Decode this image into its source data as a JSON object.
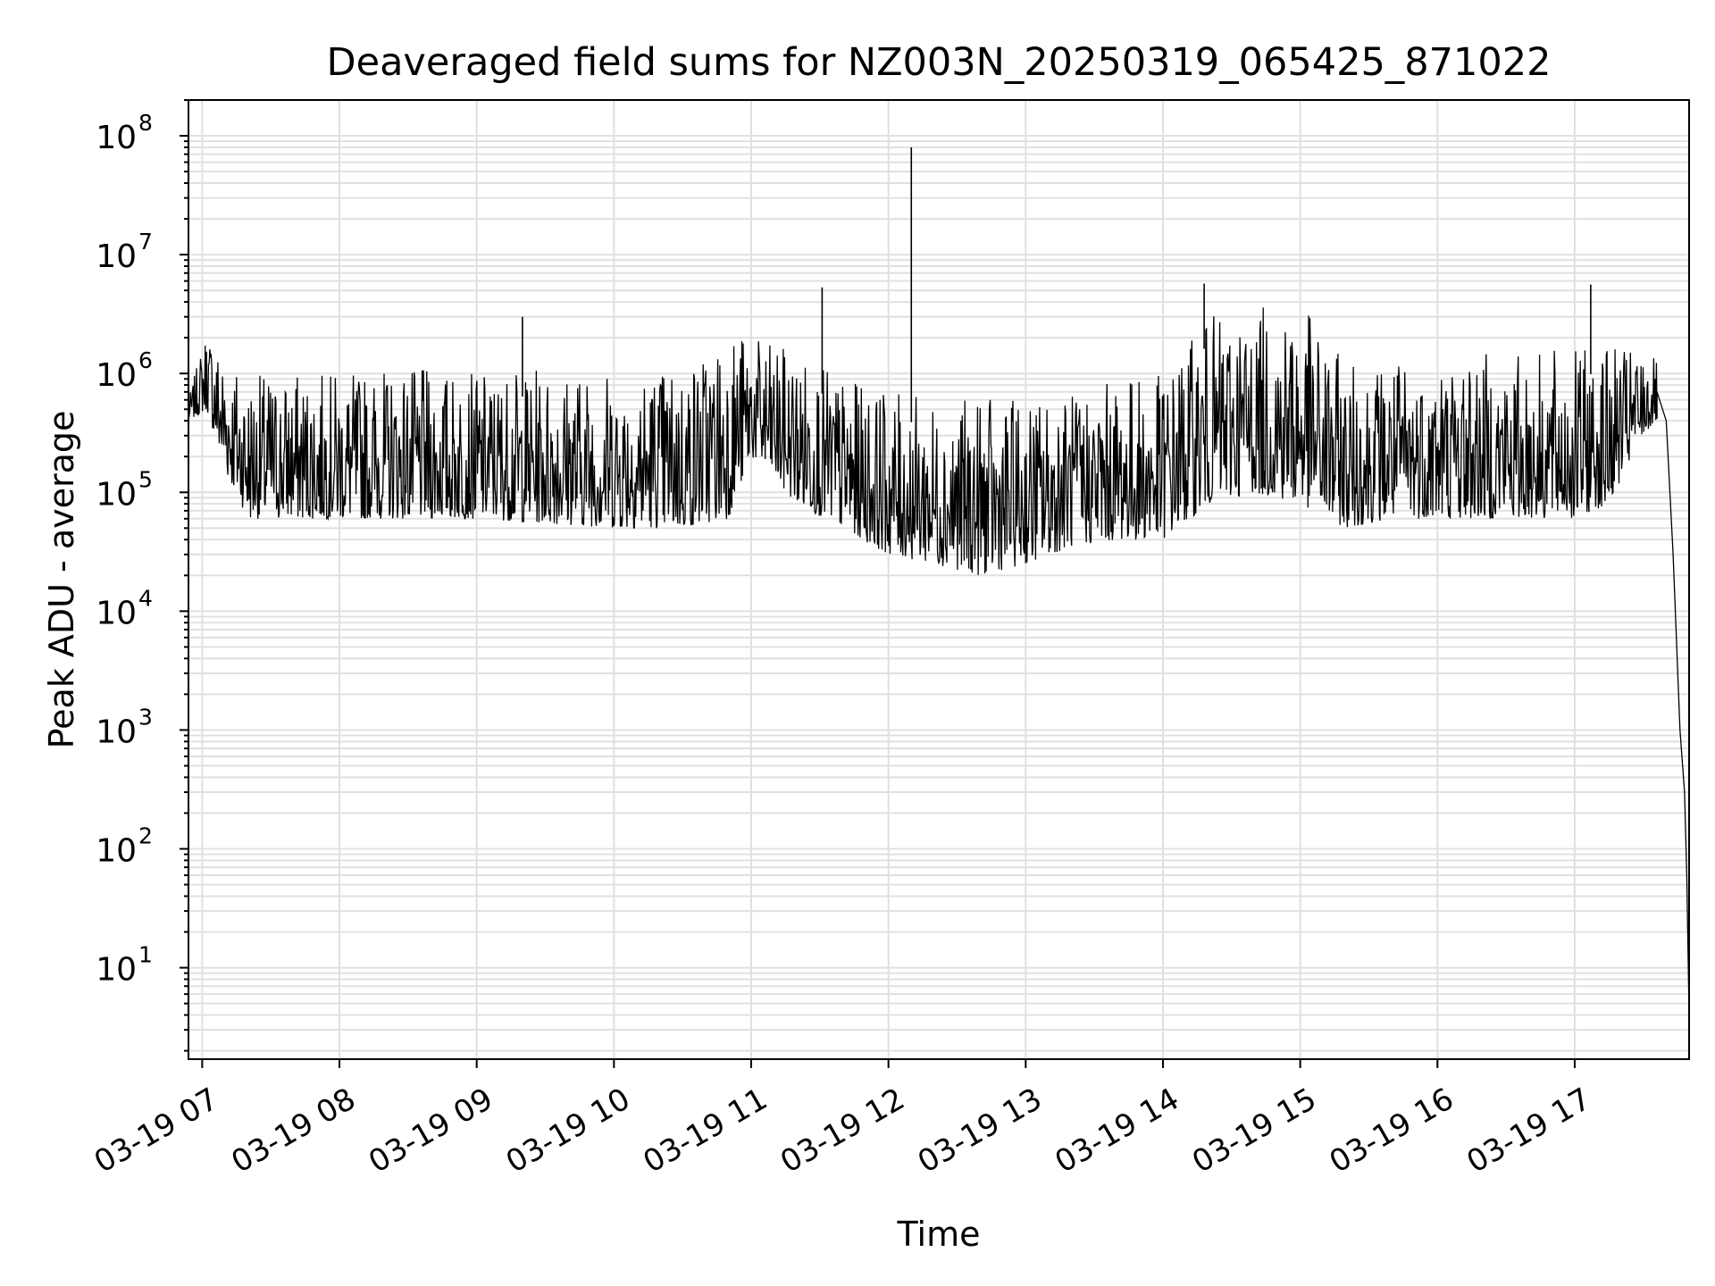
{
  "chart_data": {
    "type": "line",
    "title": "Deaveraged field sums for NZ003N_20250319_065425_871022",
    "xlabel": "Time",
    "ylabel": "Peak ADU - average",
    "y_scale": "log",
    "ylim": [
      1.7,
      200000000
    ],
    "xlim": [
      "2025-03-19 06:54",
      "2025-03-19 17:50"
    ],
    "grid": true,
    "grid_minor": true,
    "line_color": "#000000",
    "grid_color": "#e0e0e0",
    "x_tick_labels": [
      "03-19 07",
      "03-19 08",
      "03-19 09",
      "03-19 10",
      "03-19 11",
      "03-19 12",
      "03-19 13",
      "03-19 14",
      "03-19 15",
      "03-19 16",
      "03-19 17"
    ],
    "x_tick_values": [
      "2025-03-19 07:00",
      "2025-03-19 08:00",
      "2025-03-19 09:00",
      "2025-03-19 10:00",
      "2025-03-19 11:00",
      "2025-03-19 12:00",
      "2025-03-19 13:00",
      "2025-03-19 14:00",
      "2025-03-19 15:00",
      "2025-03-19 16:00",
      "2025-03-19 17:00"
    ],
    "y_ticks": [
      {
        "value": 10,
        "base": "10",
        "exp": "1"
      },
      {
        "value": 100,
        "base": "10",
        "exp": "2"
      },
      {
        "value": 1000,
        "base": "10",
        "exp": "3"
      },
      {
        "value": 10000,
        "base": "10",
        "exp": "4"
      },
      {
        "value": 100000,
        "base": "10",
        "exp": "5"
      },
      {
        "value": 1000000,
        "base": "10",
        "exp": "6"
      },
      {
        "value": 10000000,
        "base": "10",
        "exp": "7"
      },
      {
        "value": 100000000,
        "base": "10",
        "exp": "8"
      }
    ],
    "series": [
      {
        "name": "",
        "x": [
          "2025-03-19 06:54",
          "2025-03-19 06:57",
          "2025-03-19 07:00",
          "2025-03-19 07:03",
          "2025-03-19 07:06",
          "2025-03-19 07:10",
          "2025-03-19 07:15",
          "2025-03-19 07:20",
          "2025-03-19 07:30",
          "2025-03-19 07:40",
          "2025-03-19 07:50",
          "2025-03-19 08:00",
          "2025-03-19 08:15",
          "2025-03-19 08:30",
          "2025-03-19 08:45",
          "2025-03-19 09:00",
          "2025-03-19 09:15",
          "2025-03-19 09:30",
          "2025-03-19 09:45",
          "2025-03-19 10:00",
          "2025-03-19 10:15",
          "2025-03-19 10:30",
          "2025-03-19 10:45",
          "2025-03-19 11:00",
          "2025-03-19 11:15",
          "2025-03-19 11:30",
          "2025-03-19 11:45",
          "2025-03-19 12:00",
          "2025-03-19 12:15",
          "2025-03-19 12:30",
          "2025-03-19 12:45",
          "2025-03-19 13:00",
          "2025-03-19 13:15",
          "2025-03-19 13:30",
          "2025-03-19 13:45",
          "2025-03-19 14:00",
          "2025-03-19 14:15",
          "2025-03-19 14:30",
          "2025-03-19 14:45",
          "2025-03-19 15:00",
          "2025-03-19 15:15",
          "2025-03-19 15:30",
          "2025-03-19 15:45",
          "2025-03-19 16:00",
          "2025-03-19 16:15",
          "2025-03-19 16:30",
          "2025-03-19 16:45",
          "2025-03-19 17:00",
          "2025-03-19 17:10",
          "2025-03-19 17:20",
          "2025-03-19 17:30",
          "2025-03-19 17:36",
          "2025-03-19 17:40",
          "2025-03-19 17:43",
          "2025-03-19 17:46",
          "2025-03-19 17:48",
          "2025-03-19 17:49",
          "2025-03-19 17:50"
        ],
        "y": [
          450000,
          500000,
          900000,
          1500000,
          700000,
          400000,
          250000,
          180000,
          130000,
          150000,
          110000,
          120000,
          130000,
          110000,
          100000,
          110000,
          100000,
          95000,
          120000,
          110000,
          150000,
          200000,
          350000,
          400000,
          450000,
          500000,
          250000,
          90000,
          60000,
          50000,
          55000,
          90000,
          120000,
          130000,
          110000,
          100000,
          400000,
          700000,
          650000,
          800000,
          300000,
          250000,
          350000,
          400000,
          420000,
          450000,
          480000,
          500000,
          550000,
          650000,
          800000,
          700000,
          400000,
          30000,
          1000,
          300,
          60,
          4
        ]
      }
    ],
    "spikes": [
      {
        "x": "2025-03-19 09:20",
        "y": 3000000
      },
      {
        "x": "2025-03-19 11:31",
        "y": 5300000
      },
      {
        "x": "2025-03-19 12:10",
        "y": 80000000
      },
      {
        "x": "2025-03-19 14:18",
        "y": 5700000
      },
      {
        "x": "2025-03-19 17:07",
        "y": 5600000
      }
    ],
    "envelope": {
      "x": [
        "2025-03-19 06:54",
        "2025-03-19 07:02",
        "2025-03-19 07:10",
        "2025-03-19 07:20",
        "2025-03-19 07:30",
        "2025-03-19 08:00",
        "2025-03-19 08:30",
        "2025-03-19 09:00",
        "2025-03-19 09:30",
        "2025-03-19 10:00",
        "2025-03-19 10:30",
        "2025-03-19 10:50",
        "2025-03-19 11:00",
        "2025-03-19 11:20",
        "2025-03-19 11:40",
        "2025-03-19 12:00",
        "2025-03-19 12:20",
        "2025-03-19 12:40",
        "2025-03-19 13:00",
        "2025-03-19 13:20",
        "2025-03-19 13:40",
        "2025-03-19 14:00",
        "2025-03-19 14:20",
        "2025-03-19 14:40",
        "2025-03-19 15:00",
        "2025-03-19 15:20",
        "2025-03-19 15:40",
        "2025-03-19 16:00",
        "2025-03-19 16:20",
        "2025-03-19 16:40",
        "2025-03-19 17:00",
        "2025-03-19 17:15",
        "2025-03-19 17:30",
        "2025-03-19 17:36"
      ],
      "upper": [
        600000,
        2500000,
        1500000,
        1000000,
        1000000,
        1000000,
        1100000,
        1000000,
        1100000,
        1100000,
        1200000,
        2500000,
        2000000,
        1500000,
        900000,
        700000,
        600000,
        600000,
        600000,
        700000,
        900000,
        1000000,
        3000000,
        3500000,
        4000000,
        1200000,
        1300000,
        1400000,
        1500000,
        1500000,
        1600000,
        1700000,
        1500000,
        1300000
      ],
      "lower": [
        400000,
        500000,
        150000,
        60000,
        60000,
        60000,
        60000,
        60000,
        55000,
        50000,
        50000,
        60000,
        200000,
        80000,
        50000,
        30000,
        25000,
        20000,
        25000,
        35000,
        40000,
        40000,
        80000,
        100000,
        80000,
        50000,
        60000,
        60000,
        60000,
        60000,
        60000,
        80000,
        300000,
        400000
      ]
    }
  }
}
